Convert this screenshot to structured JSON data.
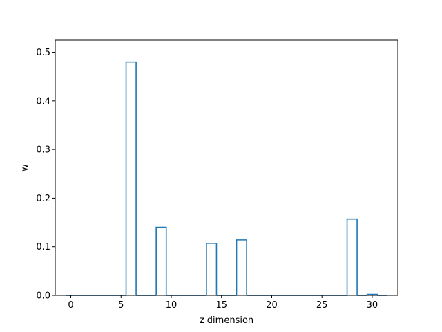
{
  "chart_data": {
    "type": "bar",
    "style": "step-outline",
    "title": "",
    "xlabel": "z dimension",
    "ylabel": "w",
    "xlim": [
      -1.55,
      32.55
    ],
    "ylim": [
      0,
      0.525
    ],
    "grid": false,
    "x_ticks": [
      0,
      5,
      10,
      15,
      20,
      25,
      30
    ],
    "y_ticks": [
      0.0,
      0.1,
      0.2,
      0.3,
      0.4,
      0.5
    ],
    "x_tick_labels": [
      "0",
      "5",
      "10",
      "15",
      "20",
      "25",
      "30"
    ],
    "y_tick_labels": [
      "0.0",
      "0.1",
      "0.2",
      "0.3",
      "0.4",
      "0.5"
    ],
    "series_color": "#1f77b4",
    "x": [
      0,
      1,
      2,
      3,
      4,
      5,
      6,
      7,
      8,
      9,
      10,
      11,
      12,
      13,
      14,
      15,
      16,
      17,
      18,
      19,
      20,
      21,
      22,
      23,
      24,
      25,
      26,
      27,
      28,
      29,
      30,
      31
    ],
    "values": [
      0,
      0,
      0,
      0,
      0,
      0,
      0.48,
      0,
      0,
      0.14,
      0,
      0,
      0,
      0,
      0.107,
      0,
      0,
      0.114,
      0,
      0,
      0,
      0,
      0,
      0,
      0,
      0,
      0,
      0,
      0.157,
      0,
      0.002,
      0
    ]
  }
}
